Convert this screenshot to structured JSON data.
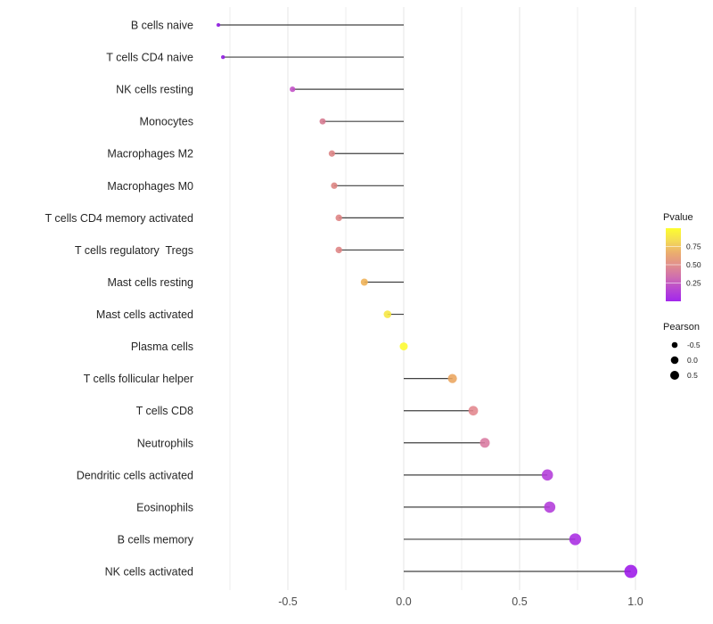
{
  "chart_data": {
    "type": "lollipop",
    "title": "",
    "xlabel": "",
    "ylabel": "",
    "x_tick_labels": [
      "-0.5",
      "0.0",
      "0.5",
      "1.0"
    ],
    "x_tick_values": [
      -0.5,
      0.0,
      0.5,
      1.0
    ],
    "x_minor_grid_values": [
      -0.75,
      -0.25,
      0.25,
      0.75
    ],
    "xlim": [
      -0.89,
      1.07
    ],
    "grid": true,
    "legend_position": "right",
    "points": [
      {
        "label": "B cells naive",
        "pearson": -0.8,
        "color": "#8E19E0"
      },
      {
        "label": "T cells CD4 naive",
        "pearson": -0.78,
        "color": "#8E19E0"
      },
      {
        "label": "NK cells resting",
        "pearson": -0.48,
        "color": "#C24FC6"
      },
      {
        "label": "Monocytes",
        "pearson": -0.35,
        "color": "#D5788E"
      },
      {
        "label": "Macrophages M2",
        "pearson": -0.31,
        "color": "#DC8283"
      },
      {
        "label": "Macrophages M0",
        "pearson": -0.3,
        "color": "#DC827F"
      },
      {
        "label": "T cells CD4 memory activated",
        "pearson": -0.28,
        "color": "#DE8282"
      },
      {
        "label": "T cells regulatory  Tregs",
        "pearson": -0.28,
        "color": "#DE8383"
      },
      {
        "label": "Mast cells resting",
        "pearson": -0.17,
        "color": "#EFB153"
      },
      {
        "label": "Mast cells activated",
        "pearson": -0.07,
        "color": "#F6E63F"
      },
      {
        "label": "Plasma cells",
        "pearson": 0.0,
        "color": "#FDFB2E"
      },
      {
        "label": "T cells follicular helper",
        "pearson": 0.21,
        "color": "#EAA55E"
      },
      {
        "label": "T cells CD8",
        "pearson": 0.3,
        "color": "#E2868D"
      },
      {
        "label": "Neutrophils",
        "pearson": 0.35,
        "color": "#DA7AA0"
      },
      {
        "label": "Dendritic cells activated",
        "pearson": 0.62,
        "color": "#B33BDA"
      },
      {
        "label": "Eosinophils",
        "pearson": 0.63,
        "color": "#B23ADA"
      },
      {
        "label": "B cells memory",
        "pearson": 0.74,
        "color": "#A92BE2"
      },
      {
        "label": "NK cells activated",
        "pearson": 0.98,
        "color": "#9C17E8"
      }
    ],
    "legend_pvalue": {
      "title": "Pvalue",
      "tick_labels": [
        "0.75",
        "0.50",
        "0.25"
      ],
      "tick_values": [
        0.75,
        0.5,
        0.25
      ],
      "range": [
        0,
        1
      ],
      "gradient_top_to_bottom": [
        "#FDFE2E",
        "#F4DC55",
        "#EBAE6E",
        "#E18F8B",
        "#D06FAE",
        "#B847D2",
        "#A227EC"
      ]
    },
    "legend_pearson": {
      "title": "Pearson",
      "items": [
        {
          "label": "-0.5",
          "value": -0.5
        },
        {
          "label": "0.0",
          "value": 0.0
        },
        {
          "label": "0.5",
          "value": 0.5
        }
      ]
    },
    "colors": {
      "stick": "#404040",
      "grid_major": "#E6E6E6",
      "grid_minor": "#EDEDED",
      "axis_text": "#4D4D4D",
      "label_text": "#262626",
      "legend_title_text": "#1A1A1A",
      "legend_dot": "#000000",
      "background": "#FFFFFF"
    }
  }
}
